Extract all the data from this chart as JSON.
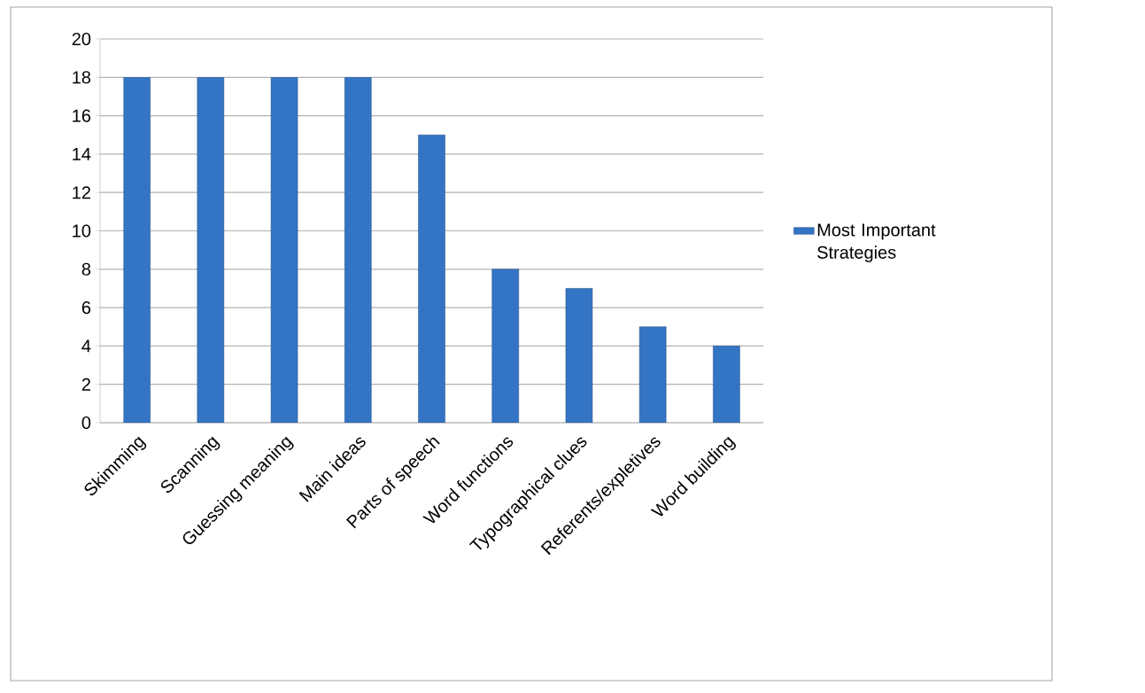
{
  "chart_data": {
    "type": "bar",
    "categories": [
      "Skimming",
      "Scanning",
      "Guessing meaning",
      "Main ideas",
      "Parts of speech",
      "Word functions",
      "Typographical clues",
      "Referents/expletives",
      "Word building"
    ],
    "series": [
      {
        "name": "Most Important Strategies",
        "color": "#3474c4",
        "values": [
          18,
          18,
          18,
          18,
          15,
          8,
          7,
          5,
          4
        ]
      }
    ],
    "ylim": [
      0,
      20
    ],
    "yticks": [
      0,
      2,
      4,
      6,
      8,
      10,
      12,
      14,
      16,
      18,
      20
    ],
    "grid": "y",
    "legend": "right"
  }
}
